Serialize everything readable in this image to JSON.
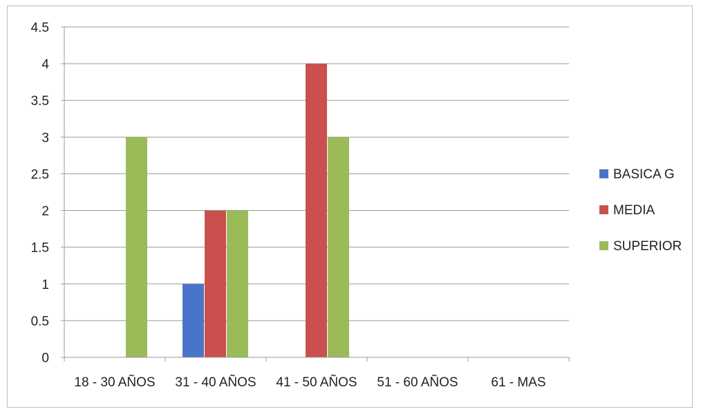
{
  "chart_data": {
    "type": "bar",
    "title": "",
    "xlabel": "",
    "ylabel": "",
    "categories": [
      "18 - 30 AÑOS",
      "31 - 40 AÑOS",
      "41 - 50 AÑOS",
      "51 - 60 AÑOS",
      "61 - MAS"
    ],
    "series": [
      {
        "name": "BASICA G",
        "color": "#4a74c9",
        "values": [
          0,
          1,
          0,
          0,
          0
        ]
      },
      {
        "name": "MEDIA",
        "color": "#c9504d",
        "values": [
          0,
          2,
          4,
          0,
          0
        ]
      },
      {
        "name": "SUPERIOR",
        "color": "#9bbb59",
        "values": [
          3,
          2,
          3,
          0,
          0
        ]
      }
    ],
    "ylim": [
      0,
      4.5
    ],
    "yticks": [
      "0",
      "0.5",
      "1",
      "1.5",
      "2",
      "2.5",
      "3",
      "3.5",
      "4",
      "4.5"
    ],
    "grid": true,
    "legend_position": "right"
  }
}
